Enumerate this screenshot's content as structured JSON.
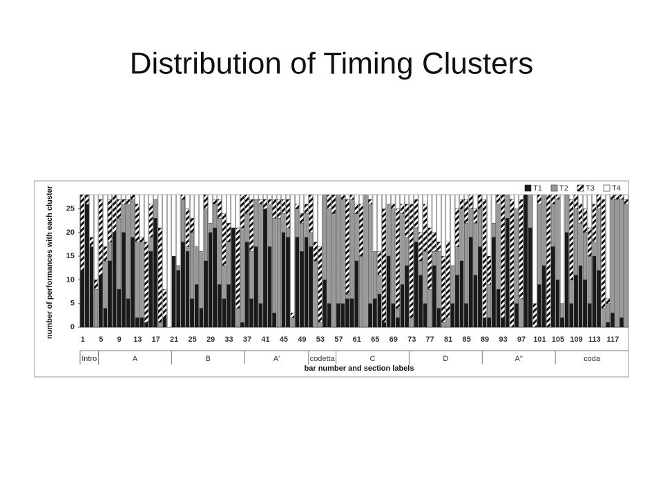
{
  "chart_data": {
    "type": "stacked-bar",
    "title": "Distribution of Timing Clusters",
    "y_label": "number of performances with each cluster",
    "x_label": "bar number and section labels",
    "categories": [
      1,
      null,
      null,
      null,
      5,
      null,
      null,
      null,
      9,
      null,
      null,
      null,
      13,
      null,
      null,
      null,
      17,
      null,
      null,
      null,
      21,
      null,
      null,
      null,
      25,
      null,
      null,
      null,
      29,
      null,
      null,
      null,
      33,
      null,
      null,
      null,
      37,
      null,
      null,
      null,
      41,
      null,
      null,
      null,
      45,
      null,
      null,
      null,
      49,
      null,
      null,
      null,
      53,
      null,
      null,
      null,
      57,
      null,
      null,
      null,
      61,
      null,
      null,
      null,
      65,
      null,
      null,
      null,
      69,
      null,
      null,
      null,
      73,
      null,
      null,
      null,
      77,
      null,
      null,
      null,
      81,
      null,
      null,
      null,
      85,
      null,
      null,
      null,
      89,
      null,
      null,
      null,
      93,
      null,
      null,
      null,
      97,
      null,
      null,
      null,
      101,
      null,
      null,
      null,
      105,
      null,
      null,
      null,
      109,
      null,
      null,
      null,
      113,
      null,
      null,
      null,
      117,
      null,
      null,
      null
    ],
    "series": [
      {
        "name": "T1",
        "color": "#1a1a1a",
        "hatch": false,
        "values": [
          12,
          26,
          17,
          0,
          11,
          4,
          14,
          20,
          8,
          20,
          6,
          19,
          2,
          2,
          1,
          16,
          23,
          0,
          2,
          0,
          15,
          12,
          18,
          16,
          6,
          9,
          4,
          14,
          20,
          21,
          9,
          6,
          9,
          21,
          0,
          1,
          18,
          6,
          17,
          5,
          25,
          17,
          3,
          0,
          20,
          19,
          0,
          19,
          16,
          19,
          17,
          0,
          0,
          10,
          5,
          0,
          5,
          5,
          6,
          6,
          14,
          0,
          0,
          5,
          6,
          7,
          1,
          15,
          5,
          2,
          9,
          13,
          0,
          18,
          11,
          5,
          0,
          13,
          4,
          0,
          0,
          5,
          11,
          14,
          5,
          19,
          11,
          17,
          2,
          2,
          19,
          8,
          2,
          23,
          0,
          5,
          0,
          28,
          21,
          0,
          9,
          13,
          0,
          17,
          10,
          2,
          20,
          5,
          11,
          13,
          10,
          5,
          15,
          12,
          0,
          1,
          3,
          0,
          2,
          0
        ]
      },
      {
        "name": "T2",
        "color": "#999999",
        "hatch": false,
        "values": [
          0,
          0,
          0,
          8,
          0,
          10,
          4,
          0,
          15,
          6,
          20,
          8,
          16,
          16,
          0,
          3,
          4,
          1,
          0,
          0,
          0,
          1,
          9,
          1,
          14,
          8,
          12,
          11,
          2,
          5,
          14,
          7,
          9,
          0,
          4,
          20,
          6,
          10,
          10,
          21,
          0,
          9,
          20,
          23,
          4,
          2,
          2,
          6,
          6,
          5,
          3,
          14,
          1,
          18,
          20,
          24,
          23,
          22,
          1,
          21,
          10,
          15,
          28,
          21,
          10,
          4,
          0,
          11,
          20,
          2,
          15,
          6,
          2,
          3,
          3,
          11,
          8,
          3,
          12,
          1,
          2,
          8,
          6,
          11,
          17,
          6,
          11,
          8,
          0,
          7,
          3,
          18,
          0,
          5,
          0,
          20,
          6,
          0,
          7,
          0,
          17,
          15,
          0,
          9,
          17,
          3,
          8,
          5,
          14,
          9,
          10,
          10,
          3,
          13,
          4,
          4,
          24,
          27,
          25,
          26
        ]
      },
      {
        "name": "T3",
        "color": "#ffffff",
        "hatch": true,
        "values": [
          16,
          2,
          2,
          2,
          16,
          3,
          9,
          8,
          4,
          1,
          1,
          1,
          8,
          1,
          17,
          7,
          0,
          20,
          6,
          0,
          0,
          0,
          1,
          8,
          3,
          0,
          0,
          3,
          0,
          1,
          4,
          11,
          4,
          0,
          17,
          7,
          4,
          11,
          0,
          1,
          2,
          1,
          4,
          4,
          3,
          6,
          1,
          1,
          2,
          2,
          8,
          4,
          16,
          0,
          3,
          4,
          0,
          1,
          20,
          1,
          2,
          11,
          0,
          1,
          0,
          5,
          24,
          0,
          1,
          21,
          2,
          7,
          24,
          6,
          6,
          10,
          13,
          4,
          2,
          14,
          16,
          0,
          8,
          2,
          5,
          3,
          3,
          3,
          25,
          6,
          0,
          2,
          26,
          0,
          27,
          0,
          21,
          0,
          0,
          5,
          2,
          0,
          28,
          2,
          1,
          0,
          0,
          17,
          3,
          4,
          5,
          6,
          8,
          3,
          23,
          1,
          1,
          1,
          1,
          1
        ]
      },
      {
        "name": "T4",
        "color": "#ffffff",
        "hatch": false,
        "values": [
          0,
          0,
          9,
          18,
          1,
          11,
          1,
          0,
          1,
          1,
          1,
          0,
          2,
          9,
          10,
          2,
          1,
          7,
          20,
          28,
          13,
          15,
          0,
          3,
          5,
          11,
          12,
          0,
          6,
          1,
          1,
          4,
          6,
          7,
          7,
          0,
          0,
          1,
          1,
          1,
          1,
          1,
          1,
          1,
          1,
          1,
          25,
          2,
          4,
          2,
          0,
          10,
          11,
          0,
          0,
          0,
          0,
          0,
          1,
          0,
          2,
          2,
          0,
          1,
          12,
          12,
          3,
          2,
          2,
          3,
          2,
          2,
          2,
          1,
          8,
          2,
          7,
          8,
          10,
          13,
          10,
          15,
          3,
          1,
          1,
          0,
          3,
          0,
          1,
          13,
          6,
          0,
          0,
          0,
          1,
          3,
          1,
          0,
          0,
          23,
          0,
          0,
          0,
          0,
          0,
          23,
          0,
          1,
          0,
          2,
          3,
          7,
          2,
          0,
          1,
          22,
          0,
          0,
          0,
          1
        ]
      }
    ],
    "sections": [
      {
        "name": "Intro",
        "from": 1
      },
      {
        "name": "A",
        "from": 5
      },
      {
        "name": "B",
        "from": 21
      },
      {
        "name": "A'",
        "from": 37
      },
      {
        "name": "codetta",
        "from": 51
      },
      {
        "name": "C",
        "from": 57
      },
      {
        "name": "D",
        "from": 73
      },
      {
        "name": "A''",
        "from": 89
      },
      {
        "name": "coda",
        "from": 105
      }
    ],
    "ylim": [
      0,
      28
    ],
    "yticks": [
      0,
      5,
      10,
      15,
      20,
      25
    ],
    "legend": "top-right"
  }
}
